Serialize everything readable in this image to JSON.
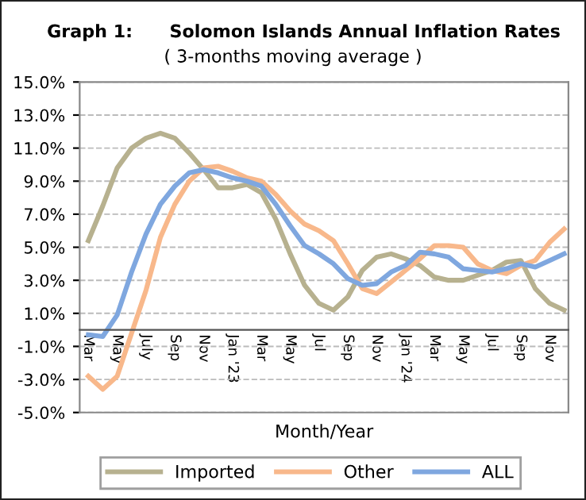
{
  "chart_data": {
    "type": "line",
    "title": "Graph 1:      Solomon Islands Annual Inflation Rates",
    "subtitle": "( 3-months moving average )",
    "xlabel": "Month/Year",
    "categories": [
      "Mar",
      null,
      "May",
      null,
      "July",
      null,
      "Sep",
      null,
      "Nov",
      null,
      "Jan '23",
      null,
      "Mar",
      null,
      "May",
      null,
      "Jul",
      null,
      "Sep",
      null,
      "Nov",
      null,
      "Jan '24",
      null,
      "Mar",
      null,
      "May",
      null,
      "Jul",
      null,
      "Sep",
      null,
      "Nov",
      null
    ],
    "series": [
      {
        "name": "Imported",
        "color": "#b7b18f",
        "values": [
          5.4,
          7.5,
          9.8,
          11.0,
          11.6,
          11.9,
          11.6,
          10.7,
          9.7,
          8.6,
          8.6,
          8.8,
          8.3,
          6.7,
          4.6,
          2.7,
          1.6,
          1.2,
          2.0,
          3.6,
          4.4,
          4.6,
          4.3,
          3.9,
          3.2,
          3.0,
          3.0,
          3.3,
          3.6,
          4.1,
          4.2,
          2.5,
          1.6,
          1.2
        ]
      },
      {
        "name": "Other",
        "color": "#f8b88b",
        "values": [
          -2.8,
          -3.6,
          -2.8,
          -0.2,
          2.4,
          5.6,
          7.6,
          9.0,
          9.8,
          9.9,
          9.6,
          9.2,
          9.0,
          8.2,
          7.2,
          6.4,
          6.0,
          5.4,
          4.0,
          2.5,
          2.2,
          2.9,
          3.6,
          4.3,
          5.1,
          5.1,
          5.0,
          4.0,
          3.6,
          3.4,
          3.9,
          4.2,
          5.3,
          6.1
        ]
      },
      {
        "name": "ALL",
        "color": "#7fa7df",
        "values": [
          -0.3,
          -0.4,
          0.9,
          3.5,
          5.8,
          7.6,
          8.7,
          9.5,
          9.7,
          9.5,
          9.2,
          9.0,
          8.7,
          7.6,
          6.3,
          5.1,
          4.6,
          4.0,
          3.1,
          2.7,
          2.8,
          3.5,
          3.9,
          4.7,
          4.6,
          4.4,
          3.7,
          3.6,
          3.5,
          3.7,
          4.0,
          3.8,
          4.2,
          4.6
        ]
      }
    ],
    "ylim": [
      -5,
      15
    ],
    "yticks": [
      {
        "value": -5,
        "label": "-5.0%"
      },
      {
        "value": -3,
        "label": "-3.0%"
      },
      {
        "value": -1,
        "label": "-1.0%"
      },
      {
        "value": 1,
        "label": "1.0%"
      },
      {
        "value": 3,
        "label": "3.0%"
      },
      {
        "value": 5,
        "label": "5.0%"
      },
      {
        "value": 7,
        "label": "7.0%"
      },
      {
        "value": 9,
        "label": "9.0%"
      },
      {
        "value": 11,
        "label": "11.0%"
      },
      {
        "value": 13,
        "label": "13.0%"
      },
      {
        "value": 15,
        "label": "15.0%"
      }
    ],
    "grid": "y",
    "legend": "bottom",
    "marker": "none",
    "line_style": "solid"
  }
}
